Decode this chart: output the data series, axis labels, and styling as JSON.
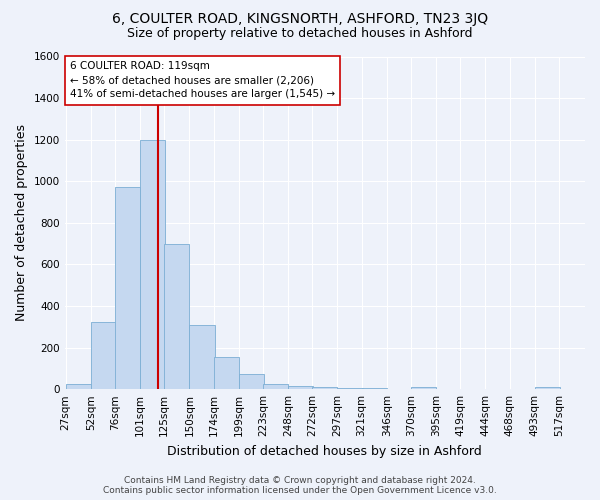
{
  "title": "6, COULTER ROAD, KINGSNORTH, ASHFORD, TN23 3JQ",
  "subtitle": "Size of property relative to detached houses in Ashford",
  "xlabel": "Distribution of detached houses by size in Ashford",
  "ylabel": "Number of detached properties",
  "footer_line1": "Contains HM Land Registry data © Crown copyright and database right 2024.",
  "footer_line2": "Contains public sector information licensed under the Open Government Licence v3.0.",
  "bar_labels": [
    "27sqm",
    "52sqm",
    "76sqm",
    "101sqm",
    "125sqm",
    "150sqm",
    "174sqm",
    "199sqm",
    "223sqm",
    "248sqm",
    "272sqm",
    "297sqm",
    "321sqm",
    "346sqm",
    "370sqm",
    "395sqm",
    "419sqm",
    "444sqm",
    "468sqm",
    "493sqm",
    "517sqm"
  ],
  "bar_values": [
    25,
    325,
    970,
    1200,
    700,
    310,
    155,
    75,
    27,
    15,
    10,
    8,
    8,
    0,
    12,
    0,
    0,
    0,
    0,
    12,
    0
  ],
  "bar_color": "#c5d8f0",
  "bar_edgecolor": "#7baed4",
  "vline_color": "#cc0000",
  "property_sqm": 119,
  "annotation_title": "6 COULTER ROAD: 119sqm",
  "annotation_line2": "← 58% of detached houses are smaller (2,206)",
  "annotation_line3": "41% of semi-detached houses are larger (1,545) →",
  "annotation_box_color": "#ffffff",
  "annotation_box_edgecolor": "#cc0000",
  "ylim": [
    0,
    1600
  ],
  "yticks": [
    0,
    200,
    400,
    600,
    800,
    1000,
    1200,
    1400,
    1600
  ],
  "bin_width": 25,
  "background_color": "#eef2fa",
  "grid_color": "#ffffff",
  "title_fontsize": 10,
  "subtitle_fontsize": 9,
  "axis_label_fontsize": 9,
  "tick_fontsize": 7.5,
  "annotation_fontsize": 7.5,
  "footer_fontsize": 6.5
}
